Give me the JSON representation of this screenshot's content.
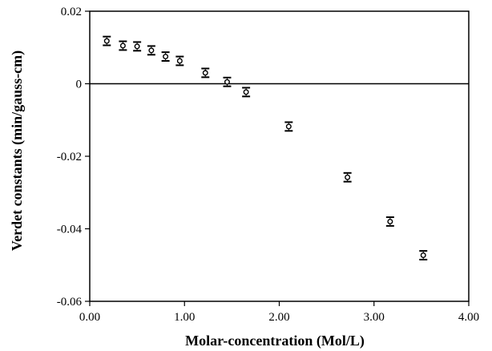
{
  "chart_data": {
    "type": "scatter",
    "xlabel": "Molar-concentration (Mol/L)",
    "ylabel": "Verdet constants (min/gauss-cm)",
    "xlim": [
      0,
      4
    ],
    "ylim": [
      -0.06,
      0.02
    ],
    "x_ticks": [
      "0.00",
      "1.00",
      "2.00",
      "3.00",
      "4.00"
    ],
    "y_ticks": [
      "0.02",
      "0",
      "-0.02",
      "-0.04",
      "-0.06"
    ],
    "x_tick_values": [
      0,
      1,
      2,
      3,
      4
    ],
    "y_tick_values": [
      0.02,
      0,
      -0.02,
      -0.04,
      -0.06
    ],
    "zero_line": true,
    "grid": false,
    "marker": "open-circle",
    "error_bars": true,
    "error_bar_halfwidth": 0.0012,
    "points": [
      {
        "x": 0.18,
        "y": 0.0118
      },
      {
        "x": 0.35,
        "y": 0.0105
      },
      {
        "x": 0.5,
        "y": 0.0103
      },
      {
        "x": 0.65,
        "y": 0.0092
      },
      {
        "x": 0.8,
        "y": 0.0075
      },
      {
        "x": 0.95,
        "y": 0.0063
      },
      {
        "x": 1.22,
        "y": 0.003
      },
      {
        "x": 1.45,
        "y": 0.0005
      },
      {
        "x": 1.65,
        "y": -0.0023
      },
      {
        "x": 2.1,
        "y": -0.0118
      },
      {
        "x": 2.72,
        "y": -0.0258
      },
      {
        "x": 3.17,
        "y": -0.038
      },
      {
        "x": 3.52,
        "y": -0.0473
      }
    ],
    "colors": {
      "axis": "#000000",
      "marker": "#000000",
      "background": "#ffffff"
    }
  }
}
